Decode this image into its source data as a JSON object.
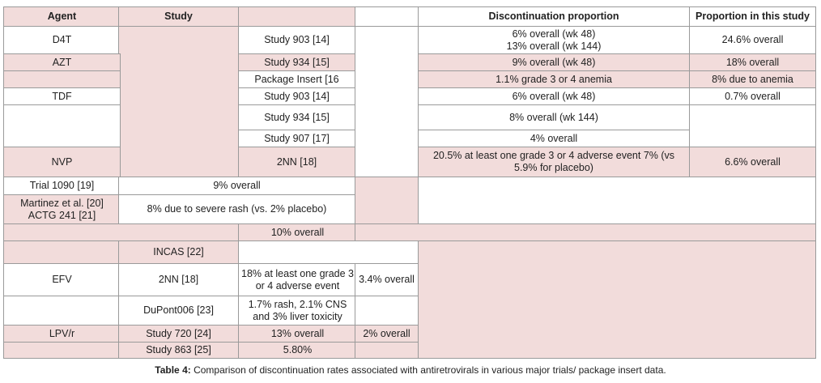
{
  "colors": {
    "pink": "#f2dcdb",
    "white": "#ffffff",
    "border": "#9a9a9a"
  },
  "headers": {
    "agent": "Agent",
    "study": "Study",
    "discontinuation": "Discontinuation proportion",
    "this_study": "Proportion in this study"
  },
  "rows": {
    "d4t": {
      "agent": "D4T",
      "study": "Study 903 [14]",
      "discontinuation": "6% overall (wk 48)\n13% overall (wk 144)",
      "this_study": "24.6% overall"
    },
    "azt": {
      "agent": "AZT",
      "study": "Study 934 [15]",
      "discontinuation": "9% overall (wk 48)",
      "this_study": "18% overall"
    },
    "pkg": {
      "study": "Package Insert [16",
      "discontinuation": "1.1% grade 3 or 4 anemia",
      "this_study": "8% due to anemia"
    },
    "tdf": {
      "agent": "TDF",
      "study": "Study 903 [14]",
      "discontinuation": "6% overall (wk 48)",
      "this_study": "0.7% overall"
    },
    "tdf2": {
      "study": "Study 934 [15]",
      "discontinuation": "8% overall (wk 144)"
    },
    "tdf3": {
      "study": "Study 907 [17]",
      "discontinuation": "4% overall"
    },
    "nvp": {
      "agent": "NVP",
      "study": "2NN [18]",
      "discontinuation": "20.5% at least one grade 3 or 4 adverse event 7% (vs 5.9% for placebo)",
      "this_study": "6.6% overall"
    },
    "trial1090": {
      "study": "Trial 1090 [19]",
      "discontinuation": "9% overall"
    },
    "martinez": {
      "study": "Martinez et al. [20]\nACTG 241 [21]",
      "discontinuation": "8% due to severe rash (vs. 2% placebo)"
    },
    "ten": {
      "discontinuation": "10% overall"
    },
    "incas": {
      "study": "INCAS [22]"
    },
    "efv": {
      "agent": "EFV",
      "study": "2NN [18]",
      "discontinuation": "18% at least one grade 3 or 4 adverse event",
      "this_study": "3.4% overall"
    },
    "dupont": {
      "study": "DuPont006 [23]",
      "discontinuation": "1.7% rash, 2.1% CNS and 3% liver toxicity"
    },
    "lpv": {
      "agent": "LPV/r",
      "study": "Study 720 [24]",
      "discontinuation": "13% overall",
      "this_study": "2% overall"
    },
    "s863": {
      "study": "Study 863 [25]",
      "discontinuation": "5.80%"
    }
  },
  "caption": {
    "label": "Table 4:",
    "text": " Comparison of discontinuation rates associated with antiretrovirals in various major trials/ package insert data."
  }
}
